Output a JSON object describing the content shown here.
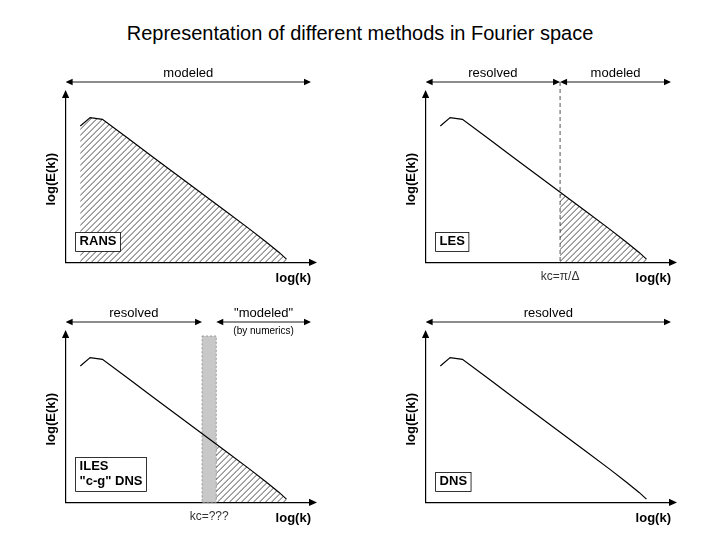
{
  "title": "Representation of different methods in Fourier space",
  "chart_data": [
    {
      "type": "line",
      "xlabel": "log(k)",
      "ylabel": "log(E(k))",
      "xlim": [
        0,
        10
      ],
      "ylim": [
        0,
        10
      ],
      "grid": false,
      "tick_labels": false,
      "x": [
        0.6,
        1.0,
        1.5,
        2.5,
        3.5,
        4.5,
        5.5,
        6.5,
        7.5,
        8.2,
        8.7,
        9.0
      ],
      "series": [
        {
          "name": [
            "RANS"
          ],
          "color": "#000000",
          "values": [
            8.2,
            8.7,
            8.6,
            7.5,
            6.4,
            5.3,
            4.2,
            3.1,
            2.0,
            1.2,
            0.6,
            0.2
          ]
        }
      ],
      "regions": [
        {
          "label": "modeled",
          "from": 0,
          "to": 10,
          "hatched": true
        }
      ]
    },
    {
      "type": "line",
      "xlabel": "log(k)",
      "ylabel": "log(E(k))",
      "xlim": [
        0,
        10
      ],
      "ylim": [
        0,
        10
      ],
      "grid": false,
      "tick_labels": false,
      "x": [
        0.6,
        1.0,
        1.5,
        2.5,
        3.5,
        4.5,
        5.5,
        6.5,
        7.5,
        8.2,
        8.7,
        9.0
      ],
      "series": [
        {
          "name": [
            "LES"
          ],
          "color": "#000000",
          "values": [
            8.2,
            8.7,
            8.6,
            7.5,
            6.4,
            5.3,
            4.2,
            3.1,
            2.0,
            1.2,
            0.6,
            0.2
          ]
        }
      ],
      "regions": [
        {
          "label": "resolved",
          "from": 0,
          "to": 5.48,
          "hatched": false
        },
        {
          "label": "modeled",
          "from": 5.48,
          "to": 10,
          "hatched": true
        }
      ],
      "cutoff": {
        "value": 5.48,
        "label": "kc=π/Δ"
      }
    },
    {
      "type": "line",
      "xlabel": "log(k)",
      "ylabel": "log(E(k))",
      "xlim": [
        0,
        10
      ],
      "ylim": [
        0,
        10
      ],
      "grid": false,
      "tick_labels": false,
      "x": [
        0.6,
        1.0,
        1.5,
        2.5,
        3.5,
        4.5,
        5.5,
        6.5,
        7.5,
        8.2,
        8.7,
        9.0
      ],
      "series": [
        {
          "name": [
            "ILES",
            "\"c-g\" DNS"
          ],
          "color": "#000000",
          "values": [
            8.2,
            8.7,
            8.6,
            7.5,
            6.4,
            5.3,
            4.2,
            3.1,
            2.0,
            1.2,
            0.6,
            0.2
          ]
        }
      ],
      "regions": [
        {
          "label": "resolved",
          "from": 0,
          "to": 5.56,
          "hatched": false
        },
        {
          "label": "\"modeled\"",
          "note": "(by numerics)",
          "from": 6.14,
          "to": 10,
          "hatched": true
        }
      ],
      "cutoff": {
        "from": 5.56,
        "to": 6.14,
        "label": "kc=???"
      }
    },
    {
      "type": "line",
      "xlabel": "log(k)",
      "ylabel": "log(E(k))",
      "xlim": [
        0,
        10
      ],
      "ylim": [
        0,
        10
      ],
      "grid": false,
      "tick_labels": false,
      "x": [
        0.6,
        1.0,
        1.5,
        2.5,
        3.5,
        4.5,
        5.5,
        6.5,
        7.5,
        8.2,
        8.7,
        9.0
      ],
      "series": [
        {
          "name": [
            "DNS"
          ],
          "color": "#000000",
          "values": [
            8.2,
            8.7,
            8.6,
            7.5,
            6.4,
            5.3,
            4.2,
            3.1,
            2.0,
            1.2,
            0.6,
            0.2
          ]
        }
      ],
      "regions": [
        {
          "label": "resolved",
          "from": 0,
          "to": 10,
          "hatched": false
        }
      ]
    }
  ]
}
